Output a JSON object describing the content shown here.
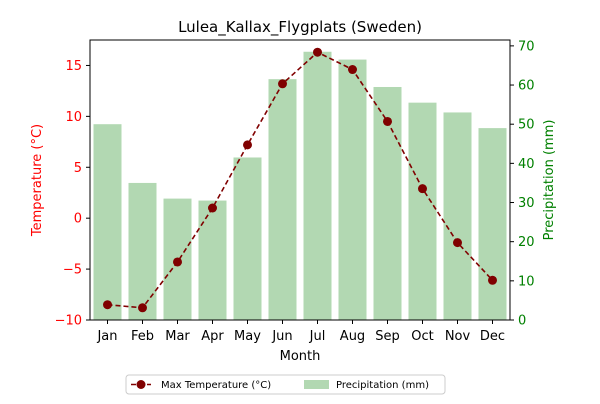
{
  "chart_data": {
    "type": "bar+line",
    "title": "Lulea_Kallax_Flygplats (Sweden)",
    "xlabel": "Month",
    "ylabel_left": "Temperature (°C)",
    "ylabel_right": "Precipitation (mm)",
    "categories": [
      "Jan",
      "Feb",
      "Mar",
      "Apr",
      "May",
      "Jun",
      "Jul",
      "Aug",
      "Sep",
      "Oct",
      "Nov",
      "Dec"
    ],
    "series": [
      {
        "name": "Max Temperature (°C)",
        "type": "line",
        "axis": "left",
        "values": [
          -8.5,
          -8.8,
          -4.3,
          1.0,
          7.2,
          13.2,
          16.3,
          14.6,
          9.5,
          2.9,
          -2.4,
          -6.1
        ]
      },
      {
        "name": "Precipitation (mm)",
        "type": "bar",
        "axis": "right",
        "values": [
          50,
          35,
          31,
          30.5,
          41.5,
          61.5,
          68.5,
          66.5,
          59.5,
          55.5,
          53,
          49
        ]
      }
    ],
    "ylim_left": [
      -10,
      17.5
    ],
    "ylim_right": [
      0,
      71.5
    ],
    "yticks_left": [
      "−10",
      "−5",
      "0",
      "5",
      "10",
      "15"
    ],
    "yticks_right": [
      "0",
      "10",
      "20",
      "30",
      "40",
      "50",
      "60",
      "70"
    ],
    "legend_placement": "bottom-center",
    "grid": false,
    "colors": {
      "line": "#800000",
      "bar": "#b2d8b2",
      "left_axis": "#ff0000",
      "right_axis": "#008000",
      "text": "#000000"
    }
  }
}
